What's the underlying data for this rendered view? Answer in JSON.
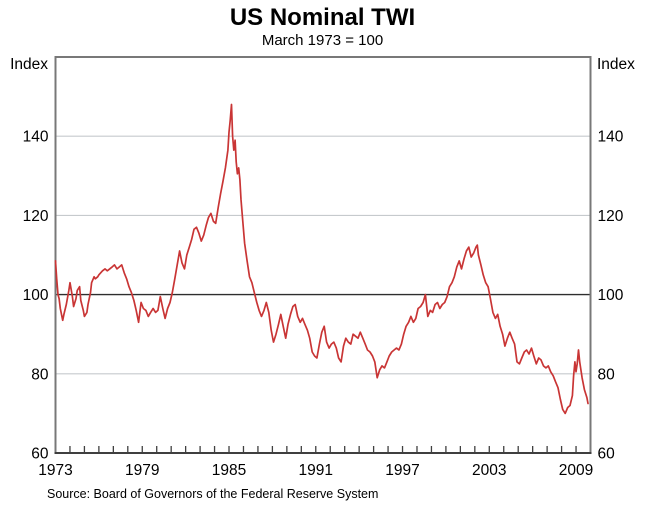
{
  "title": "US Nominal TWI",
  "subtitle": "March 1973 = 100",
  "axis_units": {
    "left": "Index",
    "right": "Index"
  },
  "source_note": "Source: Board of Governors of the Federal Reserve System",
  "chart_data": {
    "type": "line",
    "title": "US Nominal TWI",
    "subtitle": "March 1973 = 100",
    "ylabel": "Index",
    "xlabel": "",
    "ylim": [
      60,
      160
    ],
    "xlim": [
      1973,
      2010
    ],
    "grid": "horizontal",
    "y_tick_labels": [
      60,
      80,
      100,
      120,
      140
    ],
    "x_tick_labels": [
      1973,
      1979,
      1985,
      1991,
      1997,
      2003,
      2009
    ],
    "minor_x_tick_every_years": 1,
    "reference_line_y": 100,
    "colors": {
      "line": "#c93535",
      "grid": "#c6cacd",
      "reference_line": "#2e2e2e",
      "frame": "#787878",
      "tick": "#3f3f3f",
      "text": "#000000"
    },
    "series": [
      {
        "name": "US Nominal TWI",
        "points": [
          [
            1973.0,
            108.5
          ],
          [
            1973.08,
            104.0
          ],
          [
            1973.17,
            100.0
          ],
          [
            1973.25,
            99.0
          ],
          [
            1973.33,
            96.5
          ],
          [
            1973.5,
            93.5
          ],
          [
            1973.58,
            95.0
          ],
          [
            1973.75,
            97.5
          ],
          [
            1973.92,
            101.0
          ],
          [
            1974.0,
            103.0
          ],
          [
            1974.17,
            99.5
          ],
          [
            1974.25,
            97.0
          ],
          [
            1974.42,
            99.0
          ],
          [
            1974.5,
            101.0
          ],
          [
            1974.67,
            102.0
          ],
          [
            1974.75,
            98.5
          ],
          [
            1974.92,
            96.0
          ],
          [
            1975.0,
            94.5
          ],
          [
            1975.17,
            95.5
          ],
          [
            1975.25,
            97.5
          ],
          [
            1975.42,
            100.5
          ],
          [
            1975.5,
            103.0
          ],
          [
            1975.67,
            104.5
          ],
          [
            1975.75,
            104.0
          ],
          [
            1975.92,
            104.5
          ],
          [
            1976.0,
            105.0
          ],
          [
            1976.25,
            106.0
          ],
          [
            1976.42,
            106.5
          ],
          [
            1976.58,
            106.0
          ],
          [
            1976.75,
            106.5
          ],
          [
            1976.92,
            107.0
          ],
          [
            1977.08,
            107.5
          ],
          [
            1977.25,
            106.5
          ],
          [
            1977.42,
            107.0
          ],
          [
            1977.58,
            107.5
          ],
          [
            1977.75,
            105.5
          ],
          [
            1977.92,
            104.0
          ],
          [
            1978.08,
            102.0
          ],
          [
            1978.25,
            100.5
          ],
          [
            1978.42,
            98.5
          ],
          [
            1978.58,
            96.0
          ],
          [
            1978.75,
            93.0
          ],
          [
            1978.83,
            95.5
          ],
          [
            1978.92,
            98.0
          ],
          [
            1979.08,
            96.5
          ],
          [
            1979.25,
            96.0
          ],
          [
            1979.42,
            94.5
          ],
          [
            1979.58,
            95.5
          ],
          [
            1979.75,
            96.5
          ],
          [
            1979.92,
            95.5
          ],
          [
            1980.08,
            96.0
          ],
          [
            1980.25,
            99.5
          ],
          [
            1980.42,
            96.5
          ],
          [
            1980.58,
            94.0
          ],
          [
            1980.75,
            96.5
          ],
          [
            1980.92,
            98.0
          ],
          [
            1981.08,
            100.5
          ],
          [
            1981.25,
            104.0
          ],
          [
            1981.42,
            107.5
          ],
          [
            1981.58,
            111.0
          ],
          [
            1981.75,
            108.0
          ],
          [
            1981.92,
            106.5
          ],
          [
            1982.08,
            110.0
          ],
          [
            1982.25,
            112.0
          ],
          [
            1982.42,
            114.0
          ],
          [
            1982.58,
            116.5
          ],
          [
            1982.75,
            117.0
          ],
          [
            1982.92,
            115.5
          ],
          [
            1983.08,
            113.5
          ],
          [
            1983.25,
            115.0
          ],
          [
            1983.42,
            117.5
          ],
          [
            1983.58,
            119.5
          ],
          [
            1983.75,
            120.5
          ],
          [
            1983.92,
            118.5
          ],
          [
            1984.08,
            118.0
          ],
          [
            1984.25,
            122.0
          ],
          [
            1984.42,
            125.5
          ],
          [
            1984.58,
            128.5
          ],
          [
            1984.75,
            132.0
          ],
          [
            1984.92,
            136.5
          ],
          [
            1985.0,
            141.0
          ],
          [
            1985.08,
            144.0
          ],
          [
            1985.17,
            148.0
          ],
          [
            1985.25,
            140.0
          ],
          [
            1985.33,
            136.5
          ],
          [
            1985.42,
            139.0
          ],
          [
            1985.5,
            133.5
          ],
          [
            1985.58,
            130.5
          ],
          [
            1985.67,
            132.0
          ],
          [
            1985.75,
            129.0
          ],
          [
            1985.83,
            124.0
          ],
          [
            1985.92,
            120.0
          ],
          [
            1986.08,
            113.0
          ],
          [
            1986.25,
            108.5
          ],
          [
            1986.42,
            104.5
          ],
          [
            1986.58,
            103.0
          ],
          [
            1986.75,
            100.5
          ],
          [
            1986.92,
            98.0
          ],
          [
            1987.08,
            96.0
          ],
          [
            1987.25,
            94.5
          ],
          [
            1987.42,
            96.0
          ],
          [
            1987.58,
            98.0
          ],
          [
            1987.75,
            95.5
          ],
          [
            1987.92,
            91.0
          ],
          [
            1988.08,
            88.0
          ],
          [
            1988.25,
            90.0
          ],
          [
            1988.42,
            92.5
          ],
          [
            1988.58,
            95.0
          ],
          [
            1988.75,
            92.0
          ],
          [
            1988.92,
            89.0
          ],
          [
            1989.08,
            92.5
          ],
          [
            1989.25,
            95.0
          ],
          [
            1989.42,
            97.0
          ],
          [
            1989.58,
            97.5
          ],
          [
            1989.75,
            94.5
          ],
          [
            1989.92,
            93.0
          ],
          [
            1990.08,
            94.0
          ],
          [
            1990.25,
            92.5
          ],
          [
            1990.42,
            91.0
          ],
          [
            1990.58,
            89.0
          ],
          [
            1990.75,
            85.5
          ],
          [
            1990.92,
            84.5
          ],
          [
            1991.08,
            84.0
          ],
          [
            1991.25,
            87.5
          ],
          [
            1991.42,
            90.5
          ],
          [
            1991.58,
            92.0
          ],
          [
            1991.75,
            88.0
          ],
          [
            1991.92,
            86.5
          ],
          [
            1992.08,
            87.5
          ],
          [
            1992.25,
            88.0
          ],
          [
            1992.42,
            86.5
          ],
          [
            1992.58,
            84.0
          ],
          [
            1992.75,
            83.0
          ],
          [
            1992.92,
            87.0
          ],
          [
            1993.08,
            89.0
          ],
          [
            1993.25,
            88.0
          ],
          [
            1993.42,
            87.5
          ],
          [
            1993.58,
            90.0
          ],
          [
            1993.75,
            89.5
          ],
          [
            1993.92,
            89.0
          ],
          [
            1994.08,
            90.5
          ],
          [
            1994.25,
            89.0
          ],
          [
            1994.42,
            87.5
          ],
          [
            1994.58,
            86.0
          ],
          [
            1994.75,
            85.5
          ],
          [
            1994.92,
            84.5
          ],
          [
            1995.08,
            83.0
          ],
          [
            1995.25,
            79.0
          ],
          [
            1995.42,
            81.0
          ],
          [
            1995.58,
            82.0
          ],
          [
            1995.75,
            81.5
          ],
          [
            1995.92,
            83.0
          ],
          [
            1996.08,
            84.5
          ],
          [
            1996.25,
            85.5
          ],
          [
            1996.42,
            86.0
          ],
          [
            1996.58,
            86.5
          ],
          [
            1996.75,
            86.0
          ],
          [
            1996.92,
            87.5
          ],
          [
            1997.08,
            90.0
          ],
          [
            1997.25,
            92.0
          ],
          [
            1997.42,
            93.0
          ],
          [
            1997.58,
            94.5
          ],
          [
            1997.75,
            93.0
          ],
          [
            1997.92,
            94.0
          ],
          [
            1998.08,
            96.5
          ],
          [
            1998.25,
            97.0
          ],
          [
            1998.42,
            98.0
          ],
          [
            1998.58,
            100.0
          ],
          [
            1998.75,
            94.5
          ],
          [
            1998.92,
            96.0
          ],
          [
            1999.08,
            95.5
          ],
          [
            1999.25,
            97.5
          ],
          [
            1999.42,
            98.0
          ],
          [
            1999.58,
            96.5
          ],
          [
            1999.75,
            97.5
          ],
          [
            1999.92,
            98.0
          ],
          [
            2000.08,
            99.5
          ],
          [
            2000.25,
            102.0
          ],
          [
            2000.42,
            103.0
          ],
          [
            2000.58,
            104.5
          ],
          [
            2000.75,
            107.0
          ],
          [
            2000.92,
            108.5
          ],
          [
            2001.08,
            106.5
          ],
          [
            2001.25,
            109.0
          ],
          [
            2001.42,
            111.0
          ],
          [
            2001.58,
            112.0
          ],
          [
            2001.75,
            109.5
          ],
          [
            2001.92,
            110.5
          ],
          [
            2002.08,
            112.0
          ],
          [
            2002.17,
            112.5
          ],
          [
            2002.25,
            110.0
          ],
          [
            2002.42,
            107.5
          ],
          [
            2002.58,
            105.0
          ],
          [
            2002.75,
            103.0
          ],
          [
            2002.92,
            102.0
          ],
          [
            2003.08,
            99.0
          ],
          [
            2003.25,
            95.5
          ],
          [
            2003.42,
            94.0
          ],
          [
            2003.58,
            95.0
          ],
          [
            2003.75,
            92.0
          ],
          [
            2003.92,
            90.0
          ],
          [
            2004.08,
            87.0
          ],
          [
            2004.25,
            89.0
          ],
          [
            2004.42,
            90.5
          ],
          [
            2004.58,
            89.0
          ],
          [
            2004.75,
            87.5
          ],
          [
            2004.92,
            83.0
          ],
          [
            2005.08,
            82.5
          ],
          [
            2005.25,
            84.0
          ],
          [
            2005.42,
            85.5
          ],
          [
            2005.58,
            86.0
          ],
          [
            2005.75,
            85.0
          ],
          [
            2005.92,
            86.5
          ],
          [
            2006.08,
            84.5
          ],
          [
            2006.25,
            82.5
          ],
          [
            2006.42,
            84.0
          ],
          [
            2006.58,
            83.5
          ],
          [
            2006.75,
            82.0
          ],
          [
            2006.92,
            81.5
          ],
          [
            2007.08,
            82.0
          ],
          [
            2007.25,
            80.5
          ],
          [
            2007.42,
            79.5
          ],
          [
            2007.58,
            78.0
          ],
          [
            2007.75,
            76.5
          ],
          [
            2007.92,
            73.5
          ],
          [
            2008.08,
            71.0
          ],
          [
            2008.25,
            70.0
          ],
          [
            2008.42,
            71.5
          ],
          [
            2008.58,
            72.0
          ],
          [
            2008.75,
            74.5
          ],
          [
            2008.83,
            79.5
          ],
          [
            2008.92,
            83.0
          ],
          [
            2009.0,
            80.5
          ],
          [
            2009.08,
            82.5
          ],
          [
            2009.17,
            86.0
          ],
          [
            2009.25,
            83.0
          ],
          [
            2009.42,
            79.0
          ],
          [
            2009.58,
            76.0
          ],
          [
            2009.75,
            74.0
          ],
          [
            2009.83,
            72.5
          ]
        ]
      }
    ]
  }
}
